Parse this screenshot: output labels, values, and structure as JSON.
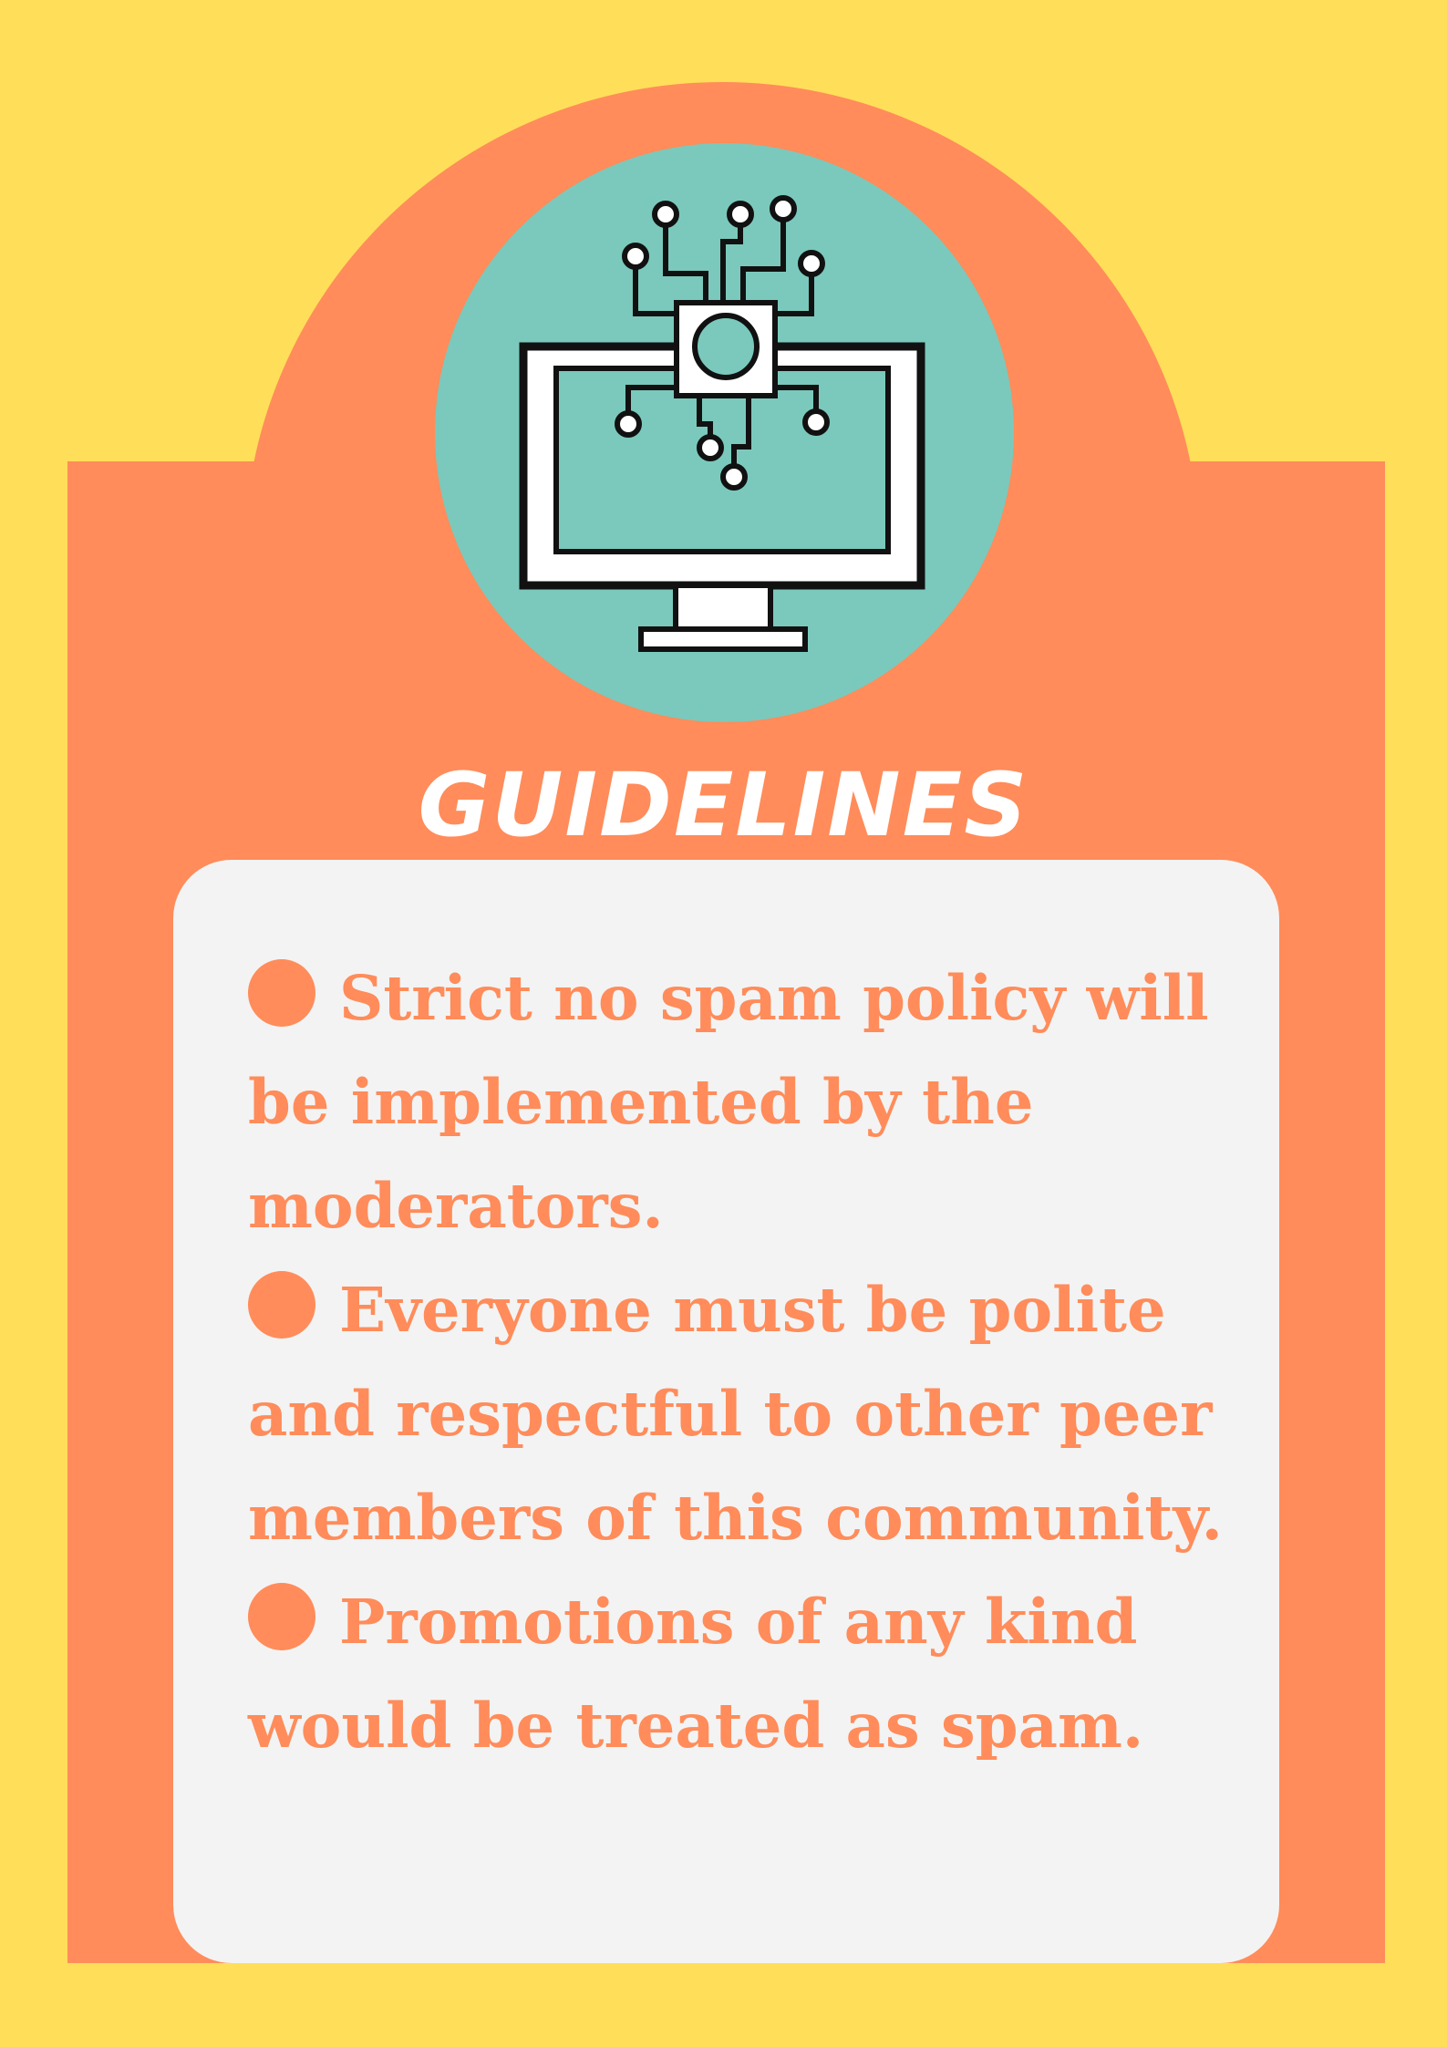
{
  "title": "GUIDELINES",
  "icon": "computer-circuit-icon",
  "rules": [
    {
      "text": "Strict no spam policy will be implemented by the moderators."
    },
    {
      "text": "Everyone must be polite and respectful to other peer members of this community."
    },
    {
      "text": "Promotions of any kind would be treated as spam."
    }
  ],
  "colors": {
    "background": "#FFDE59",
    "panel": "#FF8C5A",
    "icon_circle": "#7AC9BC",
    "card": "#F3F3F3",
    "text": "#FF8C5A",
    "title": "#FFFFFF"
  }
}
